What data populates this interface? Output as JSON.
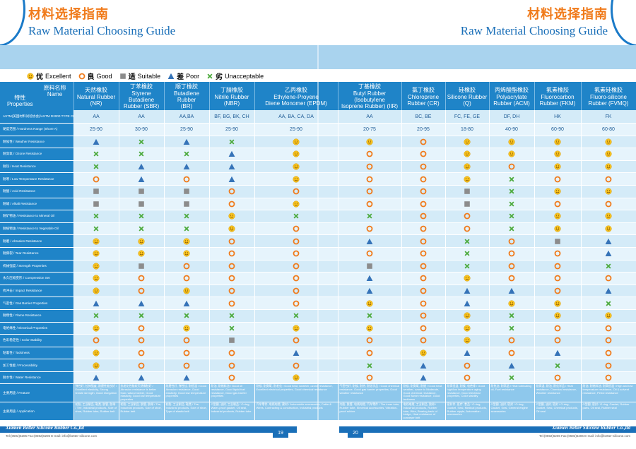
{
  "header": {
    "title_cn": "材料选择指南",
    "title_en": "Raw Material Choosing Guide"
  },
  "legend": [
    {
      "icon": "smiley-icon",
      "cn": "优",
      "en": "Excellent"
    },
    {
      "icon": "circle-icon",
      "cn": "良",
      "en": "Good"
    },
    {
      "icon": "square-icon",
      "cn": "适",
      "en": "Suitable"
    },
    {
      "icon": "triangle-icon",
      "cn": "差",
      "en": "Poor"
    },
    {
      "icon": "cross-icon",
      "cn": "劣",
      "en": "Unacceptable"
    }
  ],
  "corner": {
    "material_cn": "原料名称",
    "material_en": "Name",
    "prop_cn": "特性",
    "prop_en": "Properties"
  },
  "materials": [
    {
      "cn": "天然橡胶",
      "en1": "Natural Rubber",
      "en2": "(NR)"
    },
    {
      "cn": "丁苯橡胶",
      "en1": "Styrene Butadiene",
      "en2": "Rubber (SBR)"
    },
    {
      "cn": "顺丁橡胶",
      "en1": "Butadiene Rubber",
      "en2": "(BR)"
    },
    {
      "cn": "丁腈橡胶",
      "en1": "Nitrile Rubber",
      "en2": "(NBR)"
    },
    {
      "cn": "乙丙橡胶",
      "en1": "Ethylene-Proyene",
      "en2": "Diene Monomer (EPDM)"
    },
    {
      "cn": "丁基橡胶",
      "en1": "Butyl Rubber (Isobutylene",
      "en2": "Isoprene Rubber) (IIR)"
    },
    {
      "cn": "氯丁橡胶",
      "en1": "Chloroprene",
      "en2": "Rubber (CR)"
    },
    {
      "cn": "硅橡胶",
      "en1": "Silicone Rubber",
      "en2": "(Q)"
    },
    {
      "cn": "丙烯酸酯橡胶",
      "en1": "Polyacrylate",
      "en2": "Rubber (ACM)"
    },
    {
      "cn": "氟素橡胶",
      "en1": "Fluorocarbon",
      "en2": "Rubber (FKM)"
    },
    {
      "cn": "氟素硅橡胶",
      "en1": "Fluoro-silicone",
      "en2": "Rubber (FVMQ)"
    }
  ],
  "codes_row": {
    "label": "ASTM(美国材料试验协会)/ASTM D2000 TYPE CLASS",
    "values": [
      "AA",
      "AA",
      "AA,BA",
      "BF, BG, BK, CH",
      "AA, BA, CA, DA",
      "AA",
      "BC, BE",
      "FC, FE, GE",
      "DF, DH",
      "HK",
      "FK"
    ]
  },
  "hardness_row": {
    "label": "硬度范围 / Hardness Range (Shore A)",
    "values": [
      "25-90",
      "30-90",
      "25-90",
      "25-90",
      "25-90",
      "20-75",
      "20-95",
      "18-80",
      "40-90",
      "60-90",
      "60-80"
    ]
  },
  "rating_codes": {
    "E": "smiley",
    "G": "circle",
    "S": "square",
    "P": "triangle",
    "U": "cross"
  },
  "rows": [
    {
      "label": "耐候性 / Weather Resistance",
      "r": [
        "P",
        "U",
        "P",
        "U",
        "E",
        "E",
        "G",
        "E",
        "E",
        "E",
        "E"
      ]
    },
    {
      "label": "耐臭氧 / Ozone Resistance",
      "r": [
        "U",
        "U",
        "U",
        "P",
        "E",
        "G",
        "G",
        "E",
        "E",
        "E",
        "E"
      ]
    },
    {
      "label": "耐热 / Heat Resistance",
      "r": [
        "U",
        "P",
        "P",
        "P",
        "E",
        "G",
        "G",
        "E",
        "G",
        "E",
        "E"
      ]
    },
    {
      "label": "耐寒 / Low Temperature Resistance",
      "r": [
        "G",
        "P",
        "G",
        "P",
        "E",
        "G",
        "G",
        "E",
        "U",
        "G",
        "G"
      ]
    },
    {
      "label": "耐酸 / Acid Resistance",
      "r": [
        "S",
        "S",
        "S",
        "G",
        "G",
        "G",
        "G",
        "S",
        "U",
        "E",
        "E"
      ]
    },
    {
      "label": "耐碱 / Alkali Resistance",
      "r": [
        "S",
        "S",
        "S",
        "G",
        "E",
        "G",
        "G",
        "S",
        "U",
        "G",
        "G"
      ]
    },
    {
      "label": "耐矿物油 / Resistance to Mineral Oil",
      "r": [
        "U",
        "U",
        "U",
        "E",
        "U",
        "U",
        "G",
        "G",
        "U",
        "E",
        "E"
      ]
    },
    {
      "label": "耐植物油 / Resistance to Vegetable Oil",
      "r": [
        "U",
        "U",
        "U",
        "E",
        "G",
        "G",
        "G",
        "G",
        "U",
        "E",
        "E"
      ]
    },
    {
      "label": "耐磨 / Abrasion Resistance",
      "r": [
        "E",
        "E",
        "E",
        "G",
        "G",
        "P",
        "G",
        "U",
        "G",
        "S",
        "P"
      ]
    },
    {
      "label": "耐撕裂 / Tear Resistance",
      "r": [
        "E",
        "E",
        "E",
        "G",
        "G",
        "G",
        "G",
        "U",
        "G",
        "G",
        "P"
      ]
    },
    {
      "label": "机械强度 / Strength Properties",
      "r": [
        "E",
        "S",
        "G",
        "G",
        "G",
        "S",
        "G",
        "U",
        "G",
        "G",
        "U"
      ]
    },
    {
      "label": "永久压缩变形 / Compression Set",
      "r": [
        "E",
        "G",
        "G",
        "G",
        "G",
        "P",
        "G",
        "E",
        "G",
        "G",
        "G"
      ]
    },
    {
      "label": "抗冲击 / Impact Resistance",
      "r": [
        "E",
        "G",
        "E",
        "G",
        "G",
        "P",
        "G",
        "P",
        "P",
        "G",
        "P"
      ]
    },
    {
      "label": "气密性 / Gas Barrier Properties",
      "r": [
        "P",
        "P",
        "P",
        "G",
        "G",
        "E",
        "G",
        "P",
        "E",
        "E",
        "U"
      ]
    },
    {
      "label": "耐燃性 / Flame Resistance",
      "r": [
        "U",
        "U",
        "U",
        "U",
        "U",
        "U",
        "G",
        "E",
        "U",
        "E",
        "E"
      ]
    },
    {
      "label": "电绝缘性 / Electrical Properties",
      "r": [
        "E",
        "G",
        "E",
        "U",
        "E",
        "E",
        "G",
        "E",
        "U",
        "G",
        "G"
      ]
    },
    {
      "label": "色彩稳定性 / Color Stability",
      "r": [
        "G",
        "G",
        "G",
        "S",
        "G",
        "G",
        "G",
        "E",
        "G",
        "G",
        "G"
      ]
    },
    {
      "label": "粘着性 / Tackiness",
      "r": [
        "E",
        "G",
        "G",
        "G",
        "P",
        "G",
        "E",
        "P",
        "G",
        "P",
        "G"
      ]
    },
    {
      "label": "加工性能 / Processibility",
      "r": [
        "E",
        "G",
        "G",
        "G",
        "G",
        "U",
        "P",
        "G",
        "P",
        "U",
        "G"
      ]
    },
    {
      "label": "耐水性 / Water Resistance",
      "r": [
        "P",
        "P",
        "P",
        "G",
        "E",
        "G",
        "P",
        "G",
        "U",
        "G",
        "G"
      ]
    }
  ],
  "feature_row": {
    "label": "主要用途 / Feature",
    "values": [
      "弹性好, 拉伸强度, 耐磨性能良好 / Excellent elasticity, Strong tensile strength, Good elongation",
      "抗老化性能较天然橡胶好 / Abrasion resistance is better than natural rubber, Good elasticity, Good low temperature properties",
      "耐磨性好, 弹性佳, 耐低温 / Good Abrasion resistance, Good elasticity, Good low temperature properties",
      "耐油, 耐燃料油 / Good oil resistance, Good liquid fuel resistance, Good gas barrier properties",
      "耐候, 耐臭氧, 耐老化 / Good heat, weather, ozone resistance, Excellent electrical properties, Good chemical resistance",
      "气密性好, 耐候, 耐热, 耐化学品 / Good chemical resistance, Good gas barrier properties, Good weather resistance",
      "耐候, 耐臭氧, 耐燃 / Good heat, weather, ozone to Moderate, Good chemical resistance, Good flame resistance, Good tackiness",
      "耐高低温, 耐候, 电绝缘 / Good high/low temperature aging resistance, Good electrical properties, Color stability",
      "耐热油, 耐高温 / Heat lubricating oil, Fuel resistance",
      "耐高温, 耐油, 耐化学品 / Heat resistance, Chemical resistance, Weather resistance",
      "耐油, 耐燃料油, 耐高低温 / High and low temperature resistance, Oil & solvent resistance, Petrol resistance"
    ]
  },
  "app_row": {
    "label": "主要用途 / Application",
    "values": [
      "轮胎, 工业制品, 鞋类, 胶管, 胶带 / Tire, Industrial products, Sole of shoe, Rubber tube, Rubber belt",
      "轮胎, 工业制品, 胶管, 胶带 / Tire, Industrial products, Sole of shoe, Rubber belt",
      "轮胎, 工业制品, 鞋类 / Tire, Industrial products, Sole of shoe, Type of elastic belt",
      "O型圈, 油封, 工业制品 / O-ring, Water-proof gasket, Oil seal, Industrial products, Rubber tube",
      "汽车零件, 电线电缆, 建材 / Automobile accessories, Cable & Wires, Contracting & construction, Industrial products",
      "内胎, 胶管, 电线电缆, 汽车零件 / The inner tube, Rubber tube, Electrical accessories, Vibration-proof rubber",
      "电线电缆, 工业制品, 胶带 / Industrial products, Rubber tube, Wire, Bearing back of bridge, Heat resistance of conveyer belt",
      "密封件, 医疗, 食品 / O-ring, Gasket, Seal, Medical products, Rubber nipple, Automation accessories",
      "O型圈, 油封, 密封 / O-ring, Gasket, Seal, General engine accessories",
      "O型圈, 油封, 密封 / O-ring, Gasket, Seal, Chemical products, Oil seal",
      "O型圈, 密封 / O-ring, Gasket, Rubber parts, Oil seal, Rubber seal"
    ]
  },
  "footer": {
    "company": "Xiamen Better Silicone Rubber Co.,ltd",
    "contact": "Tel:(0592)6206 Fax:(0592)6206 E-mail: info@better-silicone.com",
    "page_left": "19",
    "page_right": "20"
  },
  "colors": {
    "primary": "#1f84c8",
    "accent": "#f07a1a",
    "smiley": "#f7c21e",
    "circle": "#f07a1a",
    "square": "#8c8c8c",
    "triangle": "#3573b8",
    "cross": "#4caa3c"
  }
}
